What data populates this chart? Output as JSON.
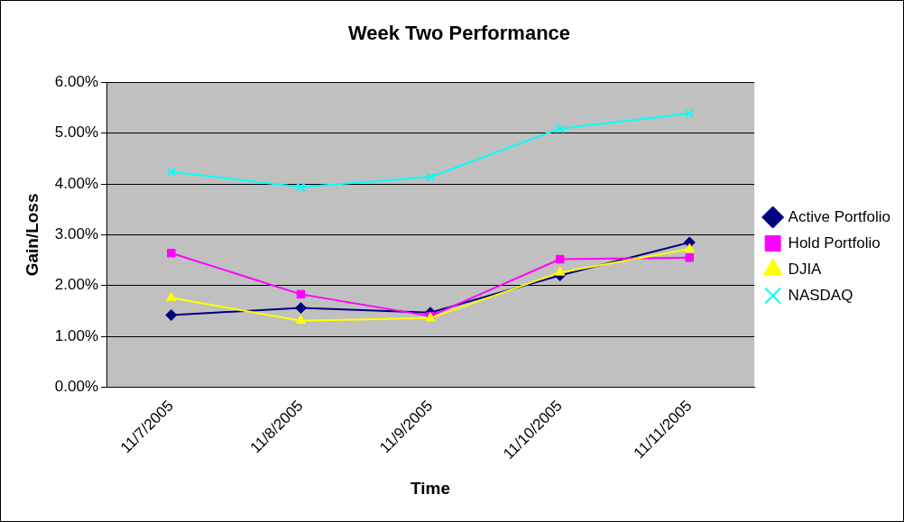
{
  "chart_data": {
    "type": "line",
    "title": "Week Two Performance",
    "xlabel": "Time",
    "ylabel": "Gain/Loss",
    "categories": [
      "11/7/2005",
      "11/8/2005",
      "11/9/2005",
      "11/10/2005",
      "11/11/2005"
    ],
    "series": [
      {
        "name": "Active Portfolio",
        "color": "#000080",
        "marker": "diamond",
        "values": [
          1.42,
          1.56,
          1.47,
          2.2,
          2.85
        ]
      },
      {
        "name": "Hold Portfolio",
        "color": "#ff00ff",
        "marker": "square",
        "values": [
          2.64,
          1.83,
          1.4,
          2.52,
          2.55
        ]
      },
      {
        "name": "DJIA",
        "color": "#ffff00",
        "marker": "triangle",
        "values": [
          1.76,
          1.31,
          1.36,
          2.26,
          2.72
        ]
      },
      {
        "name": "NASDAQ",
        "color": "#00ffff",
        "marker": "cross",
        "values": [
          4.24,
          3.94,
          4.14,
          5.09,
          5.39
        ]
      }
    ],
    "ylim": [
      0,
      6
    ],
    "yticks": [
      {
        "value": 0,
        "label": "0.00%"
      },
      {
        "value": 1,
        "label": "1.00%"
      },
      {
        "value": 2,
        "label": "2.00%"
      },
      {
        "value": 3,
        "label": "3.00%"
      },
      {
        "value": 4,
        "label": "4.00%"
      },
      {
        "value": 5,
        "label": "5.00%"
      },
      {
        "value": 6,
        "label": "6.00%"
      }
    ],
    "grid": "y",
    "legend": "right"
  }
}
